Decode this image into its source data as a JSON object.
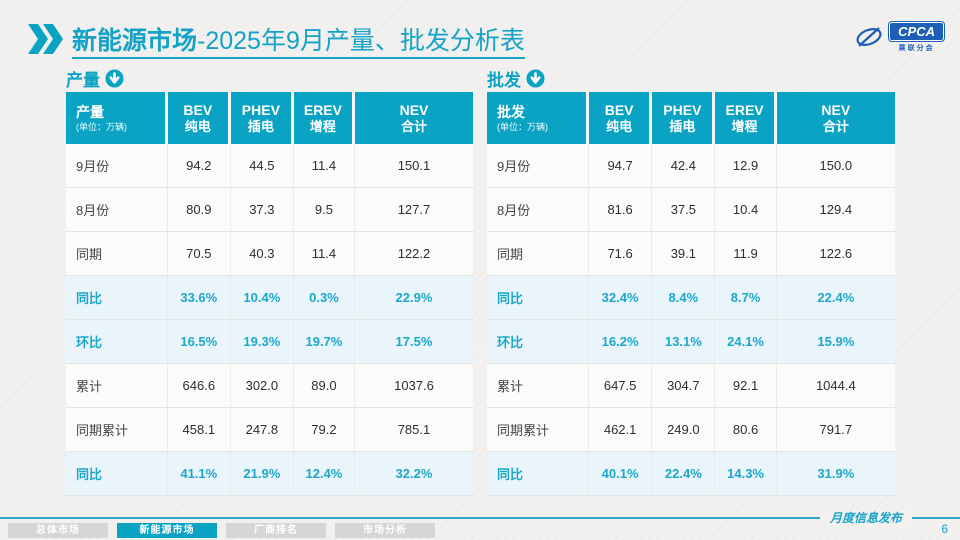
{
  "header": {
    "title_bold": "新能源市场",
    "title_rest": "-2025年9月产量、批发分析表",
    "logo_text": "CPCA",
    "logo_subtext": "乘联分会"
  },
  "colors": {
    "teal": "#0aa3c3",
    "highlight_row_bg": "#e9f5fa",
    "highlight_text": "#1ea7ca",
    "logo_blue": "#1d5fb4"
  },
  "watermark_text": "CPCA 乘联分会",
  "tables": [
    {
      "section_label": "产量",
      "corner_label": "产量",
      "unit_label": "(单位：万辆)",
      "columns": [
        {
          "en": "BEV",
          "zh": "纯电"
        },
        {
          "en": "PHEV",
          "zh": "插电"
        },
        {
          "en": "EREV",
          "zh": "增程"
        },
        {
          "en": "NEV",
          "zh": "合计"
        }
      ],
      "rows": [
        {
          "label": "9月份",
          "values": [
            "94.2",
            "44.5",
            "11.4",
            "150.1"
          ],
          "highlight": false
        },
        {
          "label": "8月份",
          "values": [
            "80.9",
            "37.3",
            "9.5",
            "127.7"
          ],
          "highlight": false
        },
        {
          "label": "同期",
          "values": [
            "70.5",
            "40.3",
            "11.4",
            "122.2"
          ],
          "highlight": false
        },
        {
          "label": "同比",
          "values": [
            "33.6%",
            "10.4%",
            "0.3%",
            "22.9%"
          ],
          "highlight": true
        },
        {
          "label": "环比",
          "values": [
            "16.5%",
            "19.3%",
            "19.7%",
            "17.5%"
          ],
          "highlight": true
        },
        {
          "label": "累计",
          "values": [
            "646.6",
            "302.0",
            "89.0",
            "1037.6"
          ],
          "highlight": false
        },
        {
          "label": "同期累计",
          "values": [
            "458.1",
            "247.8",
            "79.2",
            "785.1"
          ],
          "highlight": false
        },
        {
          "label": "同比",
          "values": [
            "41.1%",
            "21.9%",
            "12.4%",
            "32.2%"
          ],
          "highlight": true
        }
      ]
    },
    {
      "section_label": "批发",
      "corner_label": "批发",
      "unit_label": "(单位：万辆)",
      "columns": [
        {
          "en": "BEV",
          "zh": "纯电"
        },
        {
          "en": "PHEV",
          "zh": "插电"
        },
        {
          "en": "EREV",
          "zh": "增程"
        },
        {
          "en": "NEV",
          "zh": "合计"
        }
      ],
      "rows": [
        {
          "label": "9月份",
          "values": [
            "94.7",
            "42.4",
            "12.9",
            "150.0"
          ],
          "highlight": false
        },
        {
          "label": "8月份",
          "values": [
            "81.6",
            "37.5",
            "10.4",
            "129.4"
          ],
          "highlight": false
        },
        {
          "label": "同期",
          "values": [
            "71.6",
            "39.1",
            "11.9",
            "122.6"
          ],
          "highlight": false
        },
        {
          "label": "同比",
          "values": [
            "32.4%",
            "8.4%",
            "8.7%",
            "22.4%"
          ],
          "highlight": true
        },
        {
          "label": "环比",
          "values": [
            "16.2%",
            "13.1%",
            "24.1%",
            "15.9%"
          ],
          "highlight": true
        },
        {
          "label": "累计",
          "values": [
            "647.5",
            "304.7",
            "92.1",
            "1044.4"
          ],
          "highlight": false
        },
        {
          "label": "同期累计",
          "values": [
            "462.1",
            "249.0",
            "80.6",
            "791.7"
          ],
          "highlight": false
        },
        {
          "label": "同比",
          "values": [
            "40.1%",
            "22.4%",
            "14.3%",
            "31.9%"
          ],
          "highlight": true
        }
      ]
    }
  ],
  "footer": {
    "tabs": [
      {
        "label": "总体市场",
        "active": false
      },
      {
        "label": "新能源市场",
        "active": true
      },
      {
        "label": "厂商排名",
        "active": false
      },
      {
        "label": "市场分析",
        "active": false
      }
    ],
    "publication_label": "月度信息发布",
    "page_number": "6"
  }
}
